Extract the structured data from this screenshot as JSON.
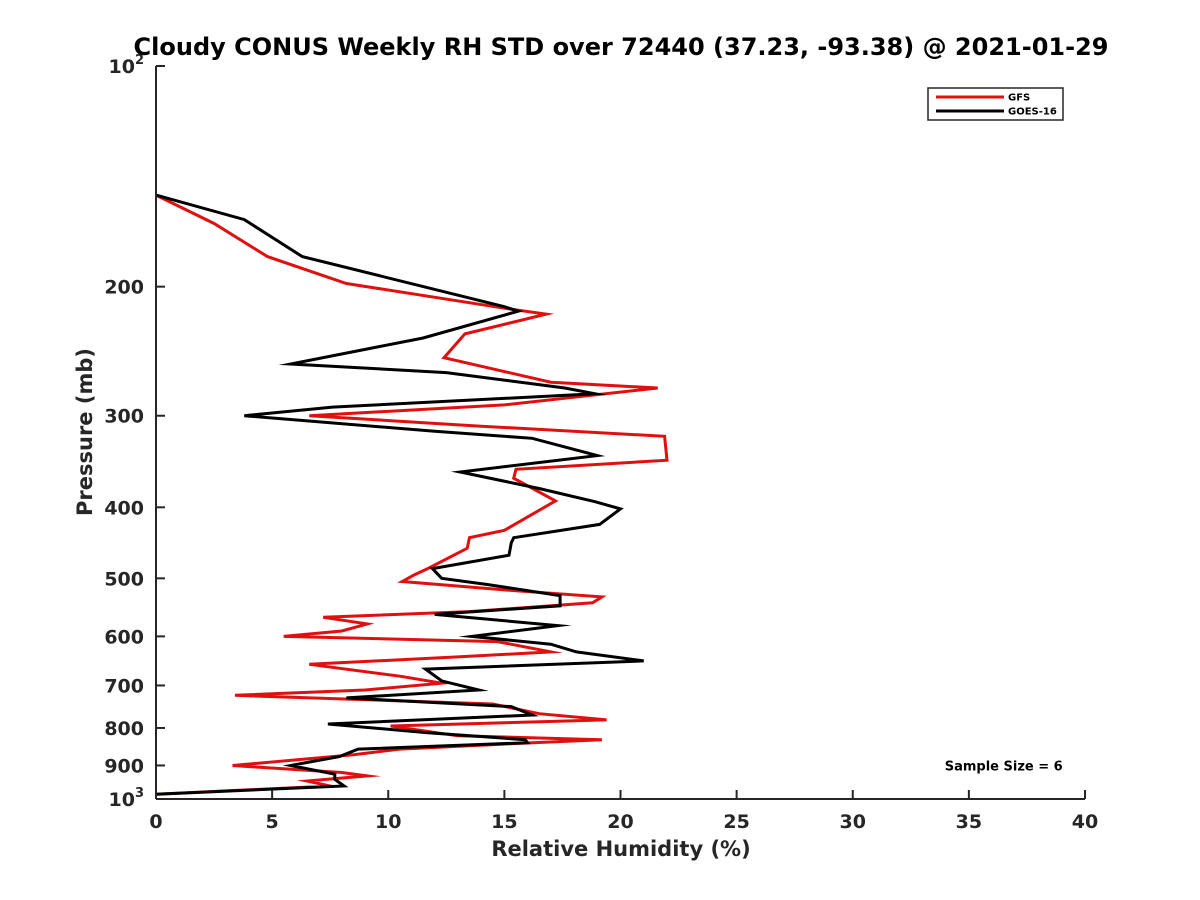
{
  "chart_data": {
    "type": "line",
    "title": "Cloudy CONUS Weekly RH STD over 72440 (37.23, -93.38) @ 2021-01-29",
    "xlabel": "Relative Humidity (%)",
    "ylabel": "Pressure (mb)",
    "xlim": [
      0,
      40
    ],
    "ylim": [
      100,
      1000
    ],
    "y_scale": "log",
    "y_reversed": true,
    "x_ticks": [
      "0",
      "5",
      "10",
      "15",
      "20",
      "25",
      "30",
      "35",
      "40"
    ],
    "y_ticks": [
      {
        "value": 100,
        "base": "10",
        "exp": "2"
      },
      {
        "value": 200,
        "label": "200"
      },
      {
        "value": 300,
        "label": "300"
      },
      {
        "value": 400,
        "label": "400"
      },
      {
        "value": 500,
        "label": "500"
      },
      {
        "value": 600,
        "label": "600"
      },
      {
        "value": 700,
        "label": "700"
      },
      {
        "value": 800,
        "label": "800"
      },
      {
        "value": 900,
        "label": "900"
      },
      {
        "value": 1000,
        "base": "10",
        "exp": "3"
      }
    ],
    "grid": false,
    "legend_position": "top-right",
    "series": [
      {
        "name": "GFS",
        "color": "#e01010",
        "points": [
          [
            0,
            150
          ],
          [
            2.5,
            164
          ],
          [
            4.8,
            182
          ],
          [
            8.2,
            198
          ],
          [
            15,
            214
          ],
          [
            16.8,
            218
          ],
          [
            13.3,
            232
          ],
          [
            12.4,
            250
          ],
          [
            17,
            270
          ],
          [
            21.6,
            275
          ],
          [
            15,
            290
          ],
          [
            6.6,
            300
          ],
          [
            14,
            310
          ],
          [
            21.9,
            320
          ],
          [
            22,
            345
          ],
          [
            15.5,
            355
          ],
          [
            15.4,
            365
          ],
          [
            17.2,
            392
          ],
          [
            15,
            430
          ],
          [
            13.5,
            440
          ],
          [
            13.4,
            455
          ],
          [
            11.7,
            485
          ],
          [
            11.1,
            495
          ],
          [
            10.6,
            505
          ],
          [
            15.5,
            520
          ],
          [
            19.2,
            530
          ],
          [
            18.8,
            540
          ],
          [
            13.5,
            555
          ],
          [
            7.2,
            565
          ],
          [
            9.1,
            577
          ],
          [
            8,
            590
          ],
          [
            5.5,
            600
          ],
          [
            14.7,
            610
          ],
          [
            17,
            630
          ],
          [
            13,
            640
          ],
          [
            6.6,
            655
          ],
          [
            10.5,
            680
          ],
          [
            12.3,
            695
          ],
          [
            9,
            710
          ],
          [
            3.4,
            722
          ],
          [
            14.5,
            742
          ],
          [
            16.5,
            765
          ],
          [
            19.4,
            780
          ],
          [
            10.1,
            795
          ],
          [
            13,
            820
          ],
          [
            19.2,
            830
          ],
          [
            15.5,
            840
          ],
          [
            10.5,
            855
          ],
          [
            8.5,
            870
          ],
          [
            3.3,
            900
          ],
          [
            8,
            920
          ],
          [
            9.1,
            930
          ],
          [
            6.5,
            945
          ],
          [
            7.5,
            960
          ],
          [
            0,
            985
          ]
        ]
      },
      {
        "name": "GOES-16",
        "color": "#000000",
        "points": [
          [
            0,
            150
          ],
          [
            3.8,
            162
          ],
          [
            6.3,
            182
          ],
          [
            15,
            213
          ],
          [
            15.6,
            216
          ],
          [
            11.5,
            235
          ],
          [
            5.8,
            255
          ],
          [
            12.5,
            262
          ],
          [
            17.6,
            275
          ],
          [
            18.9,
            280
          ],
          [
            7.6,
            292
          ],
          [
            3.8,
            300
          ],
          [
            12,
            315
          ],
          [
            16.2,
            322
          ],
          [
            19,
            340
          ],
          [
            13.1,
            358
          ],
          [
            16.5,
            377
          ],
          [
            18.9,
            393
          ],
          [
            20,
            402
          ],
          [
            19.1,
            422
          ],
          [
            15.4,
            440
          ],
          [
            15.3,
            447
          ],
          [
            15.2,
            465
          ],
          [
            11.9,
            485
          ],
          [
            12.3,
            500
          ],
          [
            14.3,
            510
          ],
          [
            17.4,
            528
          ],
          [
            17.4,
            545
          ],
          [
            12,
            560
          ],
          [
            17.3,
            580
          ],
          [
            13.6,
            600
          ],
          [
            17,
            615
          ],
          [
            18.1,
            630
          ],
          [
            21,
            648
          ],
          [
            11.6,
            665
          ],
          [
            12.3,
            690
          ],
          [
            13.9,
            710
          ],
          [
            8.2,
            728
          ],
          [
            15.3,
            748
          ],
          [
            16.2,
            768
          ],
          [
            7.4,
            790
          ],
          [
            11.7,
            812
          ],
          [
            15.9,
            830
          ],
          [
            16,
            838
          ],
          [
            8.7,
            855
          ],
          [
            7.9,
            875
          ],
          [
            5.8,
            900
          ],
          [
            7.7,
            925
          ],
          [
            7.7,
            940
          ],
          [
            8.1,
            960
          ],
          [
            0,
            985
          ]
        ]
      }
    ],
    "annotations": [
      {
        "text": "Sample Size = 6",
        "x": 36.5,
        "y": 900
      }
    ]
  }
}
